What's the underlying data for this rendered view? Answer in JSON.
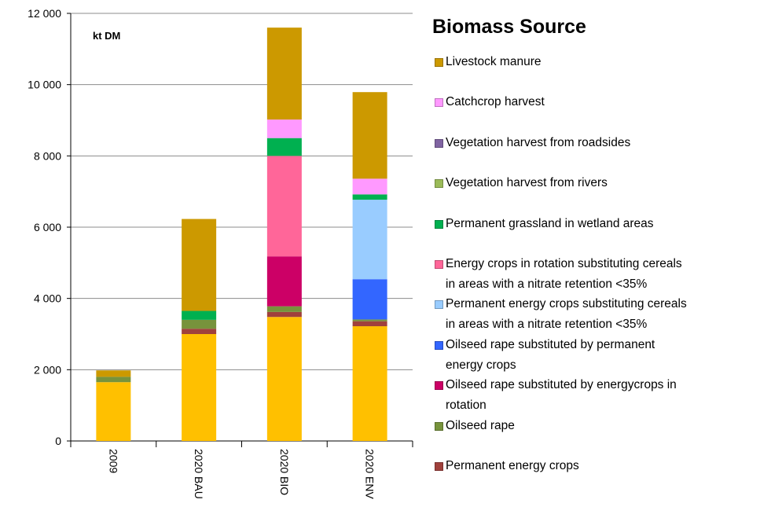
{
  "chart_data": {
    "type": "stacked_bar",
    "title": "Biomass Source",
    "annotation": "kt DM",
    "categories": [
      "2009",
      "2020 BAU",
      "2020 BIO",
      "2020 ENV"
    ],
    "ylim": [
      0,
      12000
    ],
    "yticks": [
      0,
      {
        "value": 2000,
        "label": "2 000"
      },
      {
        "value": 4000,
        "label": "4 000"
      },
      {
        "value": 6000,
        "label": "6 000"
      },
      {
        "value": 8000,
        "label": "8 000"
      },
      {
        "value": 10000,
        "label": "10 000"
      },
      {
        "value": 12000,
        "label": "12 000"
      }
    ],
    "grid": true,
    "legend": "right",
    "series": [
      {
        "name": null,
        "color": "#ffc000",
        "values": [
          1650,
          3000,
          3480,
          3220
        ]
      },
      {
        "name": "Permanent energy crops",
        "color": "#a0413c",
        "values": [
          0,
          150,
          140,
          140
        ]
      },
      {
        "name": "Oilseed rape",
        "color": "#77933c",
        "values": [
          150,
          250,
          160,
          50
        ]
      },
      {
        "name": "Oilseed rape substituted by energycrops in rotation",
        "color": "#cc0066",
        "values": [
          0,
          0,
          1400,
          0
        ]
      },
      {
        "name": "Oilseed rape substituted by permanent energy crops",
        "color": "#3366ff",
        "values": [
          0,
          0,
          0,
          1130
        ]
      },
      {
        "name": "Permanent energy crops substituting cereals in areas with a nitrate retention <35%",
        "color": "#99ccff",
        "values": [
          0,
          0,
          0,
          2230
        ]
      },
      {
        "name": "Energy crops in rotation substituting cereals in areas with a nitrate retention <35%",
        "color": "#ff6699",
        "values": [
          0,
          0,
          2820,
          0
        ]
      },
      {
        "name": "Permanent grassland in wetland areas",
        "color": "#00b050",
        "values": [
          0,
          250,
          500,
          150
        ]
      },
      {
        "name": "Vegetation harvest from rivers",
        "color": "#9bbb59",
        "values": [
          0,
          0,
          0,
          0
        ]
      },
      {
        "name": "Vegetation harvest from roadsides",
        "color": "#8064a2",
        "values": [
          0,
          0,
          0,
          0
        ]
      },
      {
        "name": "Catchcrop harvest",
        "color": "#ff99ff",
        "values": [
          0,
          0,
          520,
          440
        ]
      },
      {
        "name": "Livestock manure",
        "color": "#cc9900",
        "values": [
          180,
          2580,
          2580,
          2430
        ]
      }
    ]
  }
}
